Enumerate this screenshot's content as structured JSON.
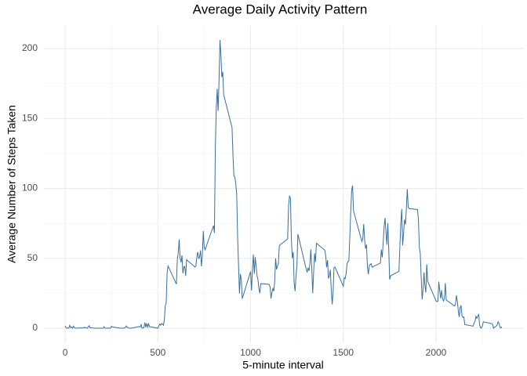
{
  "chart_data": {
    "type": "line",
    "title": "Average Daily Activity Pattern",
    "x_label": "5-minute interval",
    "y_label": "Average Number of Steps Taken",
    "color": "#3a6f9c",
    "grid": true,
    "xlim": [
      -117.75,
      2472.75
    ],
    "xticks": [
      0,
      500,
      1000,
      1500,
      2000
    ],
    "xminor": [
      250,
      750,
      1250,
      1750,
      2250
    ],
    "ylim": [
      -10.3,
      216.5
    ],
    "yticks": [
      0,
      50,
      100,
      150,
      200
    ],
    "yminor": [
      25,
      75,
      125,
      175
    ],
    "x": [
      0,
      5,
      10,
      15,
      20,
      25,
      30,
      35,
      40,
      45,
      50,
      55,
      100,
      105,
      110,
      115,
      120,
      125,
      130,
      135,
      140,
      145,
      150,
      155,
      200,
      205,
      210,
      215,
      220,
      225,
      230,
      235,
      240,
      245,
      250,
      255,
      300,
      305,
      310,
      315,
      320,
      325,
      330,
      335,
      340,
      345,
      350,
      355,
      400,
      405,
      410,
      415,
      420,
      425,
      430,
      435,
      440,
      445,
      450,
      455,
      500,
      505,
      510,
      515,
      520,
      525,
      530,
      535,
      540,
      545,
      550,
      555,
      600,
      605,
      610,
      615,
      620,
      625,
      630,
      635,
      640,
      645,
      650,
      655,
      700,
      705,
      710,
      715,
      720,
      725,
      730,
      735,
      740,
      745,
      750,
      755,
      800,
      805,
      810,
      815,
      820,
      825,
      830,
      835,
      840,
      845,
      850,
      855,
      900,
      905,
      910,
      915,
      920,
      925,
      930,
      935,
      940,
      945,
      950,
      955,
      1000,
      1005,
      1010,
      1015,
      1020,
      1025,
      1030,
      1035,
      1040,
      1045,
      1050,
      1055,
      1100,
      1105,
      1110,
      1115,
      1120,
      1125,
      1130,
      1135,
      1140,
      1145,
      1150,
      1155,
      1200,
      1205,
      1210,
      1215,
      1220,
      1225,
      1230,
      1235,
      1240,
      1245,
      1250,
      1255,
      1300,
      1305,
      1310,
      1315,
      1320,
      1325,
      1330,
      1335,
      1340,
      1345,
      1350,
      1355,
      1400,
      1405,
      1410,
      1415,
      1420,
      1425,
      1430,
      1435,
      1440,
      1445,
      1450,
      1455,
      1500,
      1505,
      1510,
      1515,
      1520,
      1525,
      1530,
      1535,
      1540,
      1545,
      1550,
      1555,
      1600,
      1605,
      1610,
      1615,
      1620,
      1625,
      1630,
      1635,
      1640,
      1645,
      1650,
      1655,
      1700,
      1705,
      1710,
      1715,
      1720,
      1725,
      1730,
      1735,
      1740,
      1745,
      1750,
      1755,
      1800,
      1805,
      1810,
      1815,
      1820,
      1825,
      1830,
      1835,
      1840,
      1845,
      1850,
      1855,
      1900,
      1905,
      1910,
      1915,
      1920,
      1925,
      1930,
      1935,
      1940,
      1945,
      1950,
      1955,
      2000,
      2005,
      2010,
      2015,
      2020,
      2025,
      2030,
      2035,
      2040,
      2045,
      2050,
      2055,
      2100,
      2105,
      2110,
      2115,
      2120,
      2125,
      2130,
      2135,
      2140,
      2145,
      2150,
      2155,
      2200,
      2205,
      2210,
      2215,
      2220,
      2225,
      2230,
      2235,
      2240,
      2245,
      2250,
      2255,
      2300,
      2305,
      2310,
      2315,
      2320,
      2325,
      2330,
      2335,
      2340,
      2345,
      2350,
      2355
    ],
    "values": [
      1.7,
      0.3,
      0.1,
      0.2,
      0.1,
      2.1,
      0.5,
      0.9,
      0,
      1.5,
      0.3,
      0.1,
      0.3,
      0.7,
      0.2,
      0.3,
      0,
      1.1,
      1.8,
      0.2,
      0.2,
      0.3,
      0.3,
      0,
      0,
      0,
      1.1,
      0,
      0,
      0.1,
      0,
      0.2,
      0,
      0,
      1.5,
      0.9,
      0,
      0,
      0,
      0,
      0.2,
      0.6,
      1.6,
      0.6,
      0.5,
      0.1,
      0,
      0,
      1.2,
      0.9,
      2.6,
      0,
      0.3,
      0.4,
      4.1,
      0.7,
      3.5,
      0.8,
      3.1,
      1.1,
      0,
      1.6,
      3.0,
      2.2,
      3.3,
      3.0,
      2.1,
      6.1,
      16.0,
      18.3,
      39.5,
      44.5,
      31.5,
      49.3,
      53.8,
      63.5,
      50.0,
      47.1,
      52.2,
      39.3,
      44.0,
      44.2,
      37.4,
      49.0,
      43.8,
      44.4,
      50.5,
      54.5,
      49.9,
      50.9,
      55.7,
      44.3,
      52.3,
      69.5,
      57.8,
      56.2,
      73.4,
      68.2,
      129.4,
      157.5,
      171.2,
      155.4,
      177.3,
      206.2,
      195.9,
      179.6,
      183.4,
      167.0,
      143.5,
      124.0,
      109.1,
      108.1,
      103.7,
      96.0,
      66.2,
      45.2,
      24.8,
      38.8,
      35.0,
      21.1,
      40.6,
      27.0,
      42.4,
      52.7,
      38.9,
      50.8,
      44.3,
      37.4,
      34.7,
      28.3,
      25.1,
      31.9,
      31.4,
      29.7,
      21.3,
      25.5,
      28.4,
      26.5,
      33.4,
      50.0,
      42.0,
      44.6,
      46.0,
      59.2,
      63.9,
      87.7,
      94.8,
      92.8,
      63.4,
      50.2,
      54.5,
      32.4,
      26.5,
      37.7,
      45.1,
      67.3,
      42.3,
      39.9,
      43.3,
      41.0,
      46.2,
      56.4,
      42.8,
      25.1,
      40.0,
      53.5,
      47.3,
      60.8,
      55.8,
      52.0,
      43.6,
      48.7,
      35.5,
      37.5,
      41.8,
      27.5,
      17.1,
      26.1,
      43.6,
      43.8,
      30.0,
      36.1,
      35.5,
      38.8,
      46.0,
      47.8,
      48.1,
      65.3,
      82.9,
      98.7,
      102.1,
      84.0,
      62.1,
      64.1,
      74.5,
      63.2,
      56.9,
      59.8,
      43.9,
      38.6,
      44.7,
      45.5,
      46.2,
      43.7,
      46.6,
      56.3,
      50.7,
      61.2,
      72.7,
      78.9,
      68.9,
      59.7,
      75.1,
      56.5,
      34.8,
      37.5,
      40.7,
      58.0,
      74.7,
      85.3,
      59.3,
      67.8,
      77.7,
      74.2,
      85.3,
      99.5,
      86.6,
      85.6,
      84.9,
      77.8,
      58.0,
      53.4,
      36.3,
      20.7,
      27.4,
      40.0,
      30.2,
      25.5,
      45.7,
      33.5,
      19.6,
      19.0,
      19.3,
      33.3,
      26.8,
      21.2,
      27.3,
      21.3,
      19.5,
      21.3,
      32.3,
      20.2,
      15.9,
      17.2,
      23.5,
      19.2,
      12.5,
      8.0,
      14.7,
      16.3,
      8.7,
      7.8,
      8.1,
      2.6,
      1.5,
      3.7,
      4.8,
      8.5,
      7.1,
      8.7,
      9.8,
      2.2,
      0.3,
      0.1,
      1.6,
      4.6,
      3.3,
      2.8,
      0,
      0.8,
      1.0,
      1.6,
      2.6,
      4.7,
      3.3,
      0.6,
      0.2,
      1.1
    ]
  }
}
